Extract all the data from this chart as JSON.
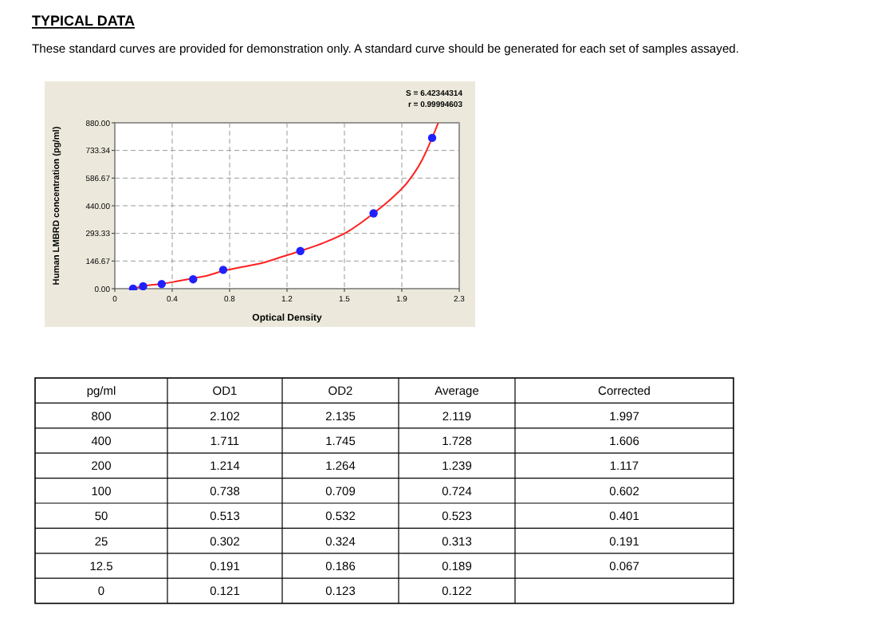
{
  "chart_data": [
    {
      "type": "scatter",
      "title": "TYPICAL DATA",
      "subtitle": "These standard curves are provided for demonstration only. A standard curve should be generated for each set of samples assayed.",
      "xlabel": "Optical Density",
      "ylabel": "Human LMBRD concentration (pg/ml)",
      "annotations": [
        "S = 6.42344314",
        "r = 0.99994603"
      ],
      "xlim": [
        0,
        2.3
      ],
      "xticks": [
        0,
        {
          "value": 0.3833,
          "label": "0.4"
        },
        {
          "value": 0.7667,
          "label": "0.8"
        },
        {
          "value": 1.15,
          "label": "1.2"
        },
        {
          "value": 1.5333,
          "label": "1.5"
        },
        {
          "value": 1.9167,
          "label": "1.9"
        },
        2.3
      ],
      "ylim": [
        0,
        880
      ],
      "yticks": [
        {
          "value": 0,
          "label": "0.00"
        },
        146.67,
        293.33,
        {
          "value": 440,
          "label": "440.00"
        },
        586.67,
        733.34,
        {
          "value": 880,
          "label": "880.00"
        }
      ],
      "grid": true,
      "marker": "circle",
      "series": [
        {
          "type": "line",
          "color": "#ff2020",
          "marker": "none",
          "line_style": "solid",
          "x": [
            0.122,
            0.2,
            0.313,
            0.42,
            0.523,
            0.62,
            0.724,
            0.85,
            1.0,
            1.12,
            1.239,
            1.4,
            1.55,
            1.728,
            1.85,
            1.95,
            2.05,
            2.119,
            2.16
          ],
          "values": [
            0,
            15,
            25,
            40,
            55,
            70,
            95,
            115,
            140,
            170,
            200,
            245,
            300,
            400,
            480,
            560,
            680,
            800,
            880
          ]
        },
        {
          "type": "scatter",
          "color": "#2020ff",
          "x": [
            0.122,
            0.189,
            0.313,
            0.523,
            0.724,
            1.239,
            1.728,
            2.119
          ],
          "values": [
            0,
            12.5,
            25,
            50,
            100,
            200,
            400,
            800
          ]
        }
      ]
    },
    {
      "type": "other",
      "categories": [
        "pg/ml",
        "OD1",
        "OD2",
        "Average",
        "Corrected"
      ],
      "cell_labels": [
        [
          "800",
          "2.102",
          "2.135",
          "2.119",
          "1.997"
        ],
        [
          "400",
          "1.711",
          "1.745",
          "1.728",
          "1.606"
        ],
        [
          "200",
          "1.214",
          "1.264",
          "1.239",
          "1.117"
        ],
        [
          "100",
          "0.738",
          "0.709",
          "0.724",
          "0.602"
        ],
        [
          "50",
          "0.513",
          "0.532",
          "0.523",
          "0.401"
        ],
        [
          "25",
          "0.302",
          "0.324",
          "0.313",
          "0.191"
        ],
        [
          "12.5",
          "0.191",
          "0.186",
          "0.189",
          "0.067"
        ],
        [
          "0",
          "0.121",
          "0.123",
          "0.122",
          null
        ]
      ]
    }
  ]
}
